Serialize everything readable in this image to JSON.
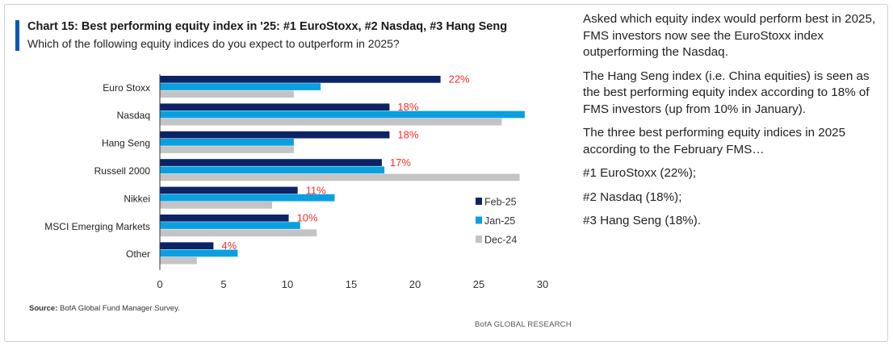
{
  "title": "Chart 15: Best performing equity index in '25: #1 EuroStoxx, #2 Nasdaq, #3 Hang Seng",
  "subtitle": "Which of the following equity indices do you expect to outperform in 2025?",
  "source_label": "Source:",
  "source_text": "BofA Global Fund Manager Survey.",
  "brand": "BofA GLOBAL RESEARCH",
  "side_text": [
    "Asked which equity index would perform best in 2025, FMS investors now see the EuroStoxx index outperforming the Nasdaq.",
    "The Hang Seng index (i.e. China equities) is seen as the best performing equity index according to 18% of FMS investors (up from 10% in January).",
    "The three best performing equity indices in 2025 according to the February FMS…",
    "#1 EuroStoxx (22%);",
    "#2 Nasdaq (18%);",
    "#3 Hang Seng (18%)."
  ],
  "chart_data": {
    "type": "bar",
    "orientation": "horizontal",
    "title": "Chart 15: Best performing equity index in '25: #1 EuroStoxx, #2 Nasdaq, #3 Hang Seng",
    "xlabel": "",
    "ylabel": "",
    "xlim": [
      0,
      30
    ],
    "xticks": [
      "0",
      "5",
      "10",
      "15",
      "20",
      "25",
      "30"
    ],
    "grid": false,
    "legend_position": "right",
    "categories": [
      "Euro Stoxx",
      "Nasdaq",
      "Hang Seng",
      "Russell 2000",
      "Nikkei",
      "MSCI Emerging Markets",
      "Other"
    ],
    "series": [
      {
        "name": "Feb-25",
        "color": "#0c2366",
        "values": [
          22,
          18,
          18,
          17.4,
          10.8,
          10.1,
          4.2
        ]
      },
      {
        "name": "Jan-25",
        "color": "#0aa0e0",
        "values": [
          12.6,
          28.6,
          10.5,
          17.6,
          13.7,
          11.0,
          6.1
        ]
      },
      {
        "name": "Dec-24",
        "color": "#c4c4c4",
        "values": [
          10.5,
          26.8,
          10.5,
          28.2,
          8.8,
          12.3,
          2.9
        ]
      }
    ],
    "data_labels": [
      "22%",
      "18%",
      "18%",
      "17%",
      "11%",
      "10%",
      "4%"
    ],
    "data_label_color": "#ff2a2a"
  }
}
